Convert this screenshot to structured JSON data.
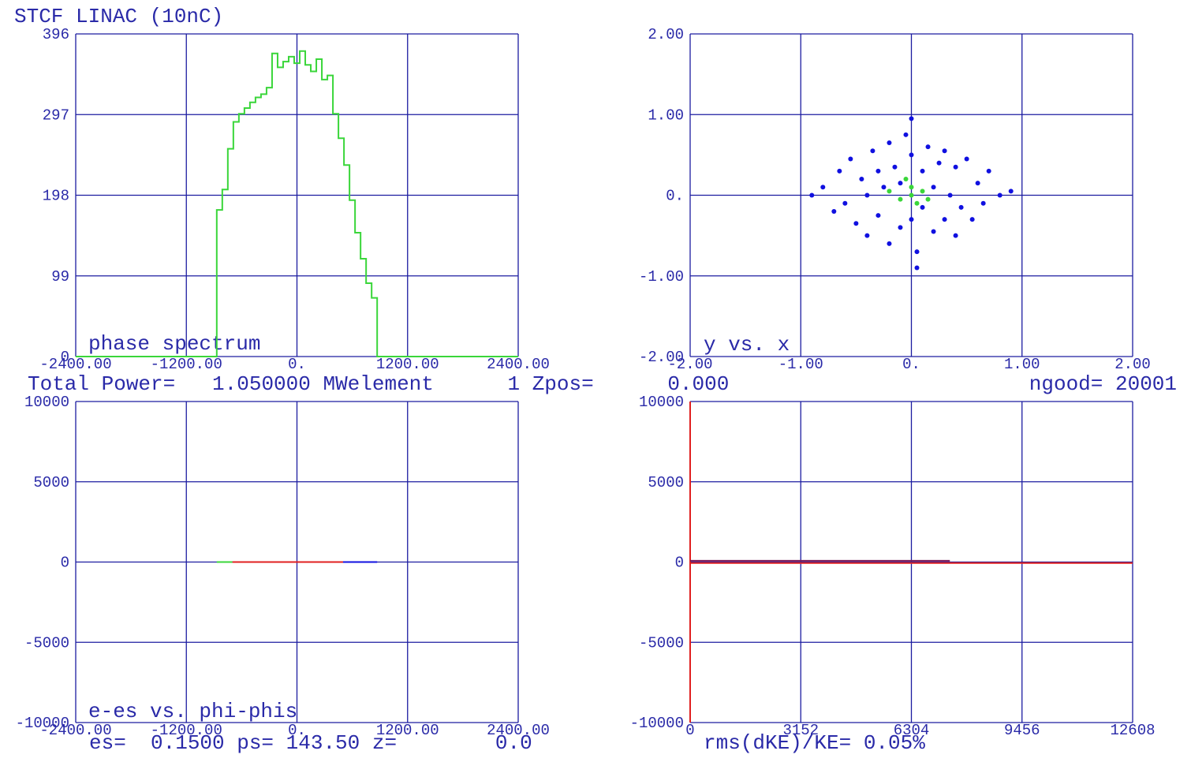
{
  "title": "STCF LINAC (10nC)",
  "info_line": "Total Power=   1.050000 MWelement      1 Zpos=      0.000",
  "ngood": "ngood= 20001",
  "footer": "es=  0.1500 ps= 143.50 z=        0.0",
  "chart_data": [
    {
      "type": "line",
      "step": true,
      "label": "phase spectrum",
      "xlim": [
        -2400,
        2400
      ],
      "ylim": [
        0,
        396
      ],
      "xticks": [
        {
          "value": -2400,
          "label": "-2400.00"
        },
        {
          "value": -1200,
          "label": "-1200.00"
        },
        {
          "value": 0,
          "label": "0."
        },
        {
          "value": 1200,
          "label": "1200.00"
        },
        {
          "value": 2400,
          "label": "2400.00"
        }
      ],
      "yticks": [
        0,
        99,
        198,
        297,
        396
      ],
      "grid": true,
      "series": [
        {
          "color": "#3ad63a",
          "x": [
            -2400,
            -870,
            -810,
            -750,
            -690,
            -630,
            -570,
            -510,
            -450,
            -390,
            -330,
            -270,
            -210,
            -150,
            -90,
            -30,
            30,
            90,
            150,
            210,
            270,
            330,
            390,
            450,
            510,
            570,
            630,
            690,
            750,
            810,
            870,
            2400
          ],
          "values": [
            0,
            180,
            205,
            255,
            288,
            298,
            305,
            312,
            318,
            322,
            330,
            372,
            355,
            362,
            368,
            360,
            375,
            358,
            350,
            365,
            340,
            345,
            298,
            268,
            235,
            192,
            152,
            120,
            90,
            72,
            0,
            0
          ]
        }
      ]
    },
    {
      "type": "scatter",
      "label": "y vs. x",
      "xlim": [
        -2,
        2
      ],
      "ylim": [
        -2,
        2
      ],
      "xticks": [
        {
          "value": -2,
          "label": "-2.00"
        },
        {
          "value": -1,
          "label": "-1.00"
        },
        {
          "value": 0,
          "label": "0."
        },
        {
          "value": 1,
          "label": "1.00"
        },
        {
          "value": 2,
          "label": "2.00"
        }
      ],
      "yticks": [
        {
          "value": -2,
          "label": "-2.00"
        },
        {
          "value": -1,
          "label": "-1.00"
        },
        {
          "value": 0,
          "label": "0."
        },
        {
          "value": 1,
          "label": "1.00"
        },
        {
          "value": 2,
          "label": "2.00"
        }
      ],
      "grid": true,
      "series": [
        {
          "color": "#1010e0",
          "x": [
            -0.8,
            -0.7,
            -0.65,
            -0.6,
            -0.55,
            -0.5,
            -0.45,
            -0.4,
            -0.4,
            -0.35,
            -0.3,
            -0.3,
            -0.25,
            -0.2,
            -0.2,
            -0.15,
            -0.1,
            -0.1,
            -0.05,
            0,
            0,
            0.05,
            0.1,
            0.1,
            0.15,
            0.2,
            0.2,
            0.25,
            0.3,
            0.3,
            0.35,
            0.4,
            0.4,
            0.45,
            0.5,
            0.55,
            0.6,
            0.65,
            0.7,
            0.8,
            0.9,
            -0.9,
            0,
            0.05
          ],
          "values": [
            0.1,
            -0.2,
            0.3,
            -0.1,
            0.45,
            -0.35,
            0.2,
            0,
            -0.5,
            0.55,
            0.3,
            -0.25,
            0.1,
            -0.6,
            0.65,
            0.35,
            -0.4,
            0.15,
            0.75,
            -0.3,
            0.5,
            -0.7,
            0.3,
            -0.15,
            0.6,
            -0.45,
            0.1,
            0.4,
            -0.3,
            0.55,
            0,
            -0.5,
            0.35,
            -0.15,
            0.45,
            -0.3,
            0.15,
            -0.1,
            0.3,
            0,
            0.05,
            0,
            0.95,
            -0.9
          ]
        },
        {
          "color": "#3ad63a",
          "x": [
            -0.2,
            -0.1,
            0,
            0.05,
            0.1,
            -0.05,
            0.15,
            0
          ],
          "values": [
            0.05,
            -0.05,
            0.1,
            -0.1,
            0.05,
            0.2,
            -0.05,
            0
          ]
        }
      ]
    },
    {
      "type": "line",
      "label": "e-es vs. phi-phis",
      "xlim": [
        -2400,
        2400
      ],
      "ylim": [
        -10000,
        10000
      ],
      "xticks": [
        {
          "value": -2400,
          "label": "-2400.00"
        },
        {
          "value": -1200,
          "label": "-1200.00"
        },
        {
          "value": 0,
          "label": "0."
        },
        {
          "value": 1200,
          "label": "1200.00"
        },
        {
          "value": 2400,
          "label": "2400.00"
        }
      ],
      "yticks": [
        -10000,
        -5000,
        0,
        5000,
        10000
      ],
      "grid": true,
      "series": [
        {
          "color": "#3ad63a",
          "x": [
            -870,
            -700
          ],
          "values": [
            0,
            0
          ]
        },
        {
          "color": "#e02020",
          "x": [
            -700,
            500
          ],
          "values": [
            0,
            0
          ]
        },
        {
          "color": "#1010e0",
          "x": [
            500,
            870
          ],
          "values": [
            0,
            0
          ]
        }
      ]
    },
    {
      "type": "line",
      "label": "rms(dKE)/KE= 0.05%",
      "xlim": [
        0,
        12608
      ],
      "ylim": [
        -10000,
        10000
      ],
      "xticks": [
        0,
        3152,
        6304,
        9456,
        12608
      ],
      "yticks": [
        -10000,
        -5000,
        0,
        5000,
        10000
      ],
      "grid": true,
      "series": [
        {
          "color": "#e02020",
          "x": [
            0,
            0,
            0,
            12608
          ],
          "values": [
            10000,
            -10000,
            -60,
            -60
          ]
        },
        {
          "color": "#7a1a5a",
          "x": [
            0,
            7400
          ],
          "values": [
            80,
            80
          ]
        }
      ]
    }
  ]
}
